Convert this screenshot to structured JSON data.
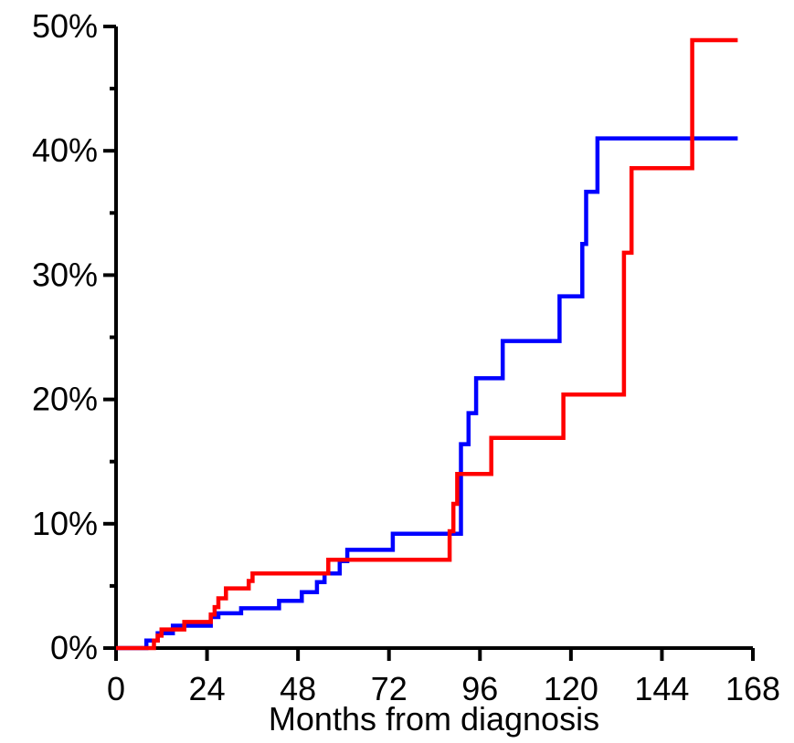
{
  "chart_data": {
    "type": "line",
    "title": "",
    "xlabel": "Months from diagnosis",
    "ylabel": "",
    "xlim": [
      0,
      168
    ],
    "ylim": [
      0,
      50
    ],
    "grid": false,
    "step": true,
    "x_ticks": [
      0,
      24,
      48,
      72,
      96,
      120,
      144,
      168
    ],
    "x_tick_labels": [
      "0",
      "24",
      "48",
      "72",
      "96",
      "120",
      "144",
      "168"
    ],
    "y_ticks": [
      0,
      10,
      20,
      30,
      40,
      50
    ],
    "y_tick_labels": [
      "0%",
      "10%",
      "20%",
      "30%",
      "40%",
      "50%"
    ],
    "y_minor_ticks": [
      5,
      15,
      25,
      35,
      45
    ],
    "series": [
      {
        "color": "#0000ff",
        "points": [
          [
            0,
            0
          ],
          [
            8,
            0
          ],
          [
            8,
            0.6
          ],
          [
            11,
            0.6
          ],
          [
            11,
            1.2
          ],
          [
            15,
            1.2
          ],
          [
            15,
            1.8
          ],
          [
            25,
            1.8
          ],
          [
            25,
            2.5
          ],
          [
            27,
            2.5
          ],
          [
            27,
            2.8
          ],
          [
            33,
            2.8
          ],
          [
            33,
            3.2
          ],
          [
            43,
            3.2
          ],
          [
            43,
            3.8
          ],
          [
            49,
            3.8
          ],
          [
            49,
            4.5
          ],
          [
            53,
            4.5
          ],
          [
            53,
            5.3
          ],
          [
            55,
            5.3
          ],
          [
            55,
            6.0
          ],
          [
            59,
            6.0
          ],
          [
            59,
            7.0
          ],
          [
            61,
            7.0
          ],
          [
            61,
            7.9
          ],
          [
            73,
            7.9
          ],
          [
            73,
            9.2
          ],
          [
            91,
            9.2
          ],
          [
            91,
            16.4
          ],
          [
            93,
            16.4
          ],
          [
            93,
            18.9
          ],
          [
            95,
            18.9
          ],
          [
            95,
            21.7
          ],
          [
            102,
            21.7
          ],
          [
            102,
            24.7
          ],
          [
            117,
            24.7
          ],
          [
            117,
            28.3
          ],
          [
            123,
            28.3
          ],
          [
            123,
            32.5
          ],
          [
            124,
            32.5
          ],
          [
            124,
            36.7
          ],
          [
            127,
            36.7
          ],
          [
            127,
            41.0
          ],
          [
            164,
            41.0
          ]
        ]
      },
      {
        "color": "#ff0000",
        "points": [
          [
            0,
            0
          ],
          [
            10,
            0
          ],
          [
            10,
            0.6
          ],
          [
            11,
            0.6
          ],
          [
            11,
            1.0
          ],
          [
            12,
            1.0
          ],
          [
            12,
            1.5
          ],
          [
            18,
            1.5
          ],
          [
            18,
            2.1
          ],
          [
            25,
            2.1
          ],
          [
            25,
            2.7
          ],
          [
            26,
            2.7
          ],
          [
            26,
            3.3
          ],
          [
            27,
            3.3
          ],
          [
            27,
            4.0
          ],
          [
            29,
            4.0
          ],
          [
            29,
            4.8
          ],
          [
            35,
            4.8
          ],
          [
            35,
            5.4
          ],
          [
            36,
            5.4
          ],
          [
            36,
            6.0
          ],
          [
            56,
            6.0
          ],
          [
            56,
            7.1
          ],
          [
            88,
            7.1
          ],
          [
            88,
            9.4
          ],
          [
            89,
            9.4
          ],
          [
            89,
            11.6
          ],
          [
            90,
            11.6
          ],
          [
            90,
            14.0
          ],
          [
            99,
            14.0
          ],
          [
            99,
            16.9
          ],
          [
            118,
            16.9
          ],
          [
            118,
            20.4
          ],
          [
            134,
            20.4
          ],
          [
            134,
            31.8
          ],
          [
            136,
            31.8
          ],
          [
            136,
            38.6
          ],
          [
            152,
            38.6
          ],
          [
            152,
            48.9
          ],
          [
            164,
            48.9
          ]
        ]
      }
    ]
  }
}
